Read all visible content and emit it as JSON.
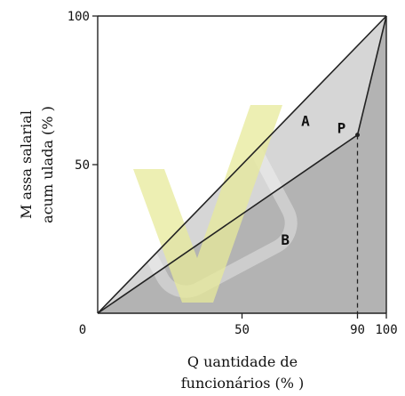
{
  "chart_data": {
    "type": "area",
    "title": "",
    "xlabel_lines": [
      "Q uantidade de",
      "funcionários (% )"
    ],
    "ylabel_lines": [
      "M assa salarial",
      "acum ulada (% )"
    ],
    "xlim": [
      0,
      100
    ],
    "ylim": [
      0,
      100
    ],
    "x_ticks": [
      0,
      50,
      90,
      100
    ],
    "x_tick_labels": [
      "0",
      "50",
      "90",
      "100"
    ],
    "y_ticks": [
      50,
      100
    ],
    "y_tick_labels": [
      "50",
      "100"
    ],
    "series": [
      {
        "name": "",
        "style": "line",
        "x": [
          0,
          100
        ],
        "y": [
          0,
          100
        ]
      },
      {
        "name": "",
        "style": "line",
        "x": [
          0,
          90,
          100
        ],
        "y": [
          0,
          60,
          100
        ]
      }
    ],
    "point": {
      "label": "P",
      "x": 90,
      "y": 60
    },
    "dashed_guide": {
      "x": 90,
      "from_y": 0,
      "to_y": 60
    },
    "regions": [
      {
        "label": "A",
        "x": 72,
        "y": 63,
        "fill": "#d6d6d6"
      },
      {
        "label": "B",
        "x": 65,
        "y": 23,
        "fill": "#b3b3b3"
      }
    ],
    "grid": false,
    "colors": {
      "line": "#222222",
      "region_a": "#d6d6d6",
      "region_b": "#b3b3b3",
      "watermark": "#e7ea9a"
    }
  }
}
